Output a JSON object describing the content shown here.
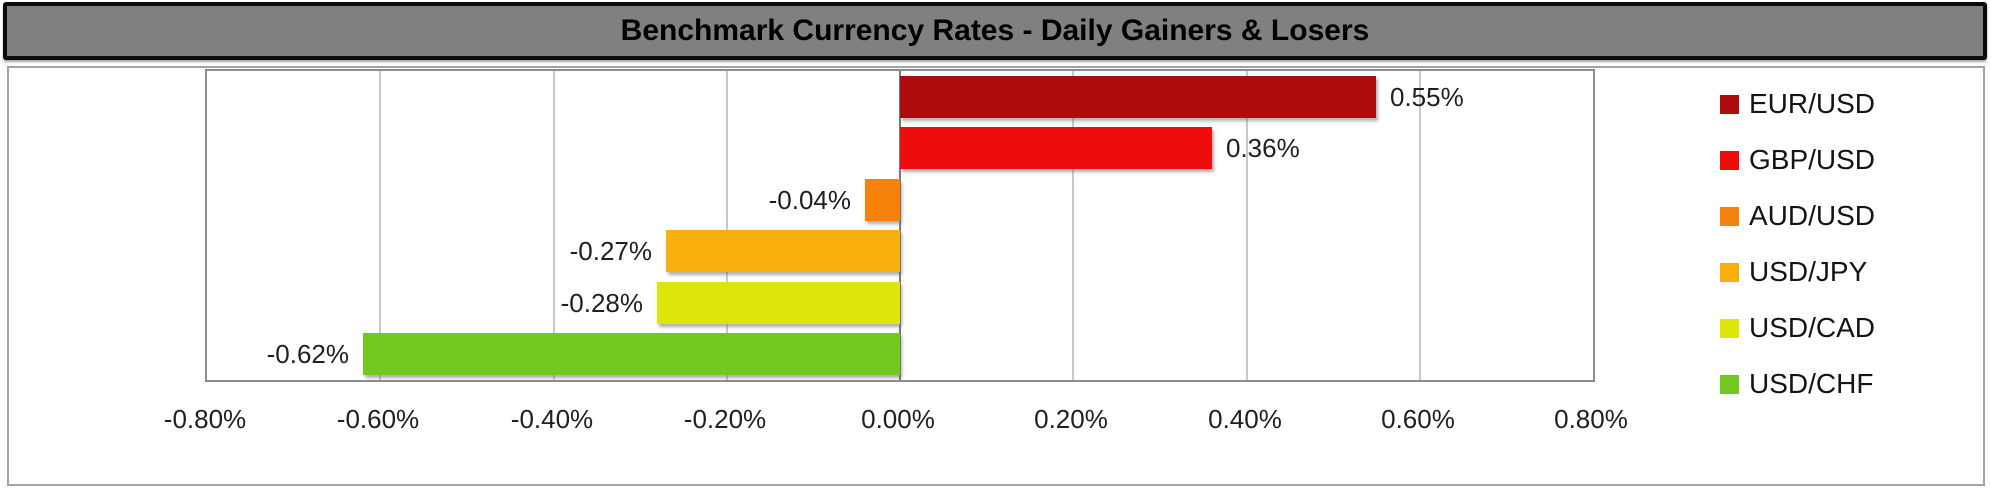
{
  "title_bar": {
    "title": "Benchmark Currency Rates - Daily Gainers & Losers",
    "background_color": "#808080",
    "border_color": "#0b0b0b"
  },
  "chart_data": {
    "type": "bar",
    "orientation": "horizontal",
    "title": "Benchmark Currency Rates - Daily Gainers & Losers",
    "categories": [
      "EUR/USD",
      "GBP/USD",
      "AUD/USD",
      "USD/JPY",
      "USD/CAD",
      "USD/CHF"
    ],
    "values": [
      0.55,
      0.36,
      -0.04,
      -0.27,
      -0.28,
      -0.62
    ],
    "value_labels": [
      "0.55%",
      "0.36%",
      "-0.04%",
      "-0.27%",
      "-0.28%",
      "-0.62%"
    ],
    "colors": [
      "#ae0b0e",
      "#ee0d0d",
      "#f6820c",
      "#f9b00d",
      "#dce60b",
      "#72c81f"
    ],
    "xlim": [
      -0.8,
      0.8
    ],
    "x_tick_values": [
      -0.8,
      -0.6,
      -0.4,
      -0.2,
      0,
      0.2,
      0.4,
      0.6,
      0.8
    ],
    "x_tick_labels": [
      "-0.80%",
      "-0.60%",
      "-0.40%",
      "-0.20%",
      "0.00%",
      "0.20%",
      "0.40%",
      "0.60%",
      "0.80%"
    ],
    "grid": true,
    "gridline_color": "#c9c9c9",
    "zero_line_color": "#7a7a7a",
    "legend_position": "right"
  },
  "legend": {
    "items": [
      {
        "label": "EUR/USD",
        "color": "#ae0b0e"
      },
      {
        "label": "GBP/USD",
        "color": "#ee0d0d"
      },
      {
        "label": "AUD/USD",
        "color": "#f6820c"
      },
      {
        "label": "USD/JPY",
        "color": "#f9b00d"
      },
      {
        "label": "USD/CAD",
        "color": "#dce60b"
      },
      {
        "label": "USD/CHF",
        "color": "#72c81f"
      }
    ]
  }
}
